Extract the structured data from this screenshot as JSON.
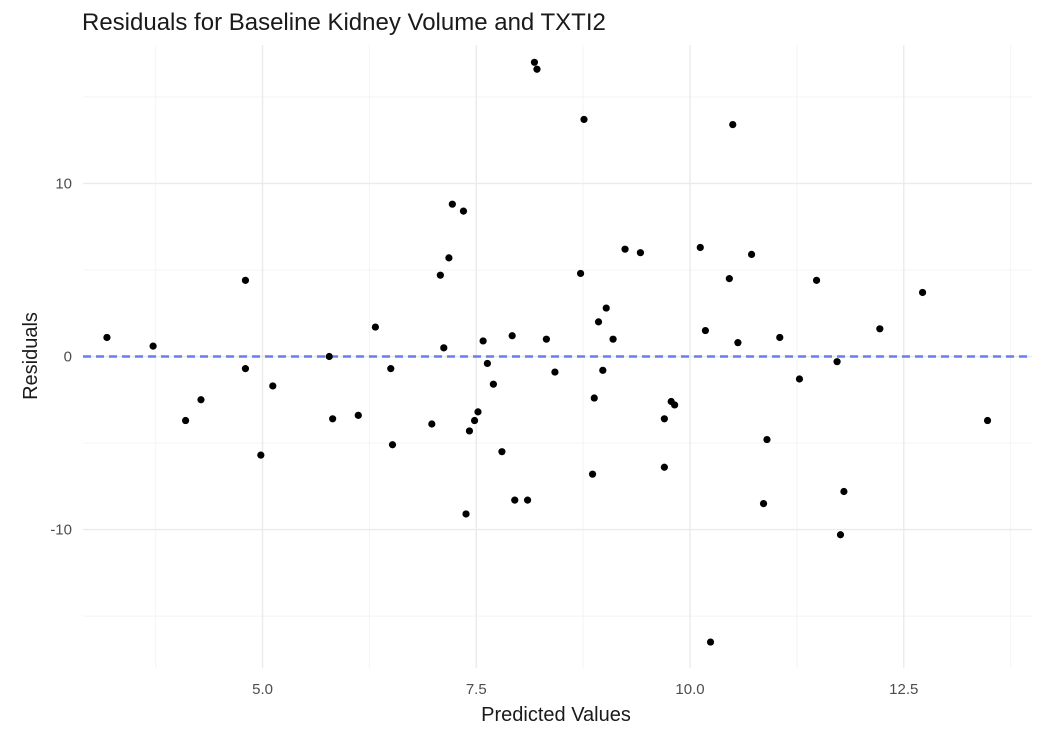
{
  "chart_data": {
    "type": "scatter",
    "title": "Residuals for Baseline Kidney Volume and TXTI2",
    "xlabel": "Predicted Values",
    "ylabel": "Residuals",
    "xlim": [
      2.9,
      14.0
    ],
    "ylim": [
      -18.0,
      18.0
    ],
    "x_ticks": [
      5.0,
      7.5,
      10.0,
      12.5
    ],
    "x_tick_labels": [
      "5.0",
      "7.5",
      "10.0",
      "12.5"
    ],
    "y_ticks": [
      -10,
      0,
      10
    ],
    "y_tick_labels": [
      "-10",
      "0",
      "10"
    ],
    "grid": true,
    "reference_line": {
      "y": 0,
      "style": "dashed",
      "color": "#6b7cf0"
    },
    "point_color": "#000000",
    "points": [
      {
        "x": 3.18,
        "y": 1.1
      },
      {
        "x": 3.72,
        "y": 0.6
      },
      {
        "x": 4.1,
        "y": -3.7
      },
      {
        "x": 4.28,
        "y": -2.5
      },
      {
        "x": 4.8,
        "y": 4.4
      },
      {
        "x": 4.8,
        "y": -0.7
      },
      {
        "x": 4.98,
        "y": -5.7
      },
      {
        "x": 5.12,
        "y": -1.7
      },
      {
        "x": 5.78,
        "y": 0.0
      },
      {
        "x": 5.82,
        "y": -3.6
      },
      {
        "x": 6.12,
        "y": -3.4
      },
      {
        "x": 6.32,
        "y": 1.7
      },
      {
        "x": 6.5,
        "y": -0.7
      },
      {
        "x": 6.52,
        "y": -5.1
      },
      {
        "x": 6.98,
        "y": -3.9
      },
      {
        "x": 7.08,
        "y": 4.7
      },
      {
        "x": 7.12,
        "y": 0.5
      },
      {
        "x": 7.18,
        "y": 5.7
      },
      {
        "x": 7.22,
        "y": 8.8
      },
      {
        "x": 7.35,
        "y": 8.4
      },
      {
        "x": 7.38,
        "y": -9.1
      },
      {
        "x": 7.42,
        "y": -4.3
      },
      {
        "x": 7.48,
        "y": -3.7
      },
      {
        "x": 7.52,
        "y": -3.2
      },
      {
        "x": 7.58,
        "y": 0.9
      },
      {
        "x": 7.63,
        "y": -0.4
      },
      {
        "x": 7.7,
        "y": -1.6
      },
      {
        "x": 7.8,
        "y": -5.5
      },
      {
        "x": 7.92,
        "y": 1.2
      },
      {
        "x": 7.95,
        "y": -8.3
      },
      {
        "x": 8.1,
        "y": -8.3
      },
      {
        "x": 8.18,
        "y": 17.0
      },
      {
        "x": 8.21,
        "y": 16.6
      },
      {
        "x": 8.32,
        "y": 1.0
      },
      {
        "x": 8.42,
        "y": -0.9
      },
      {
        "x": 8.72,
        "y": 4.8
      },
      {
        "x": 8.76,
        "y": 13.7
      },
      {
        "x": 8.86,
        "y": -6.8
      },
      {
        "x": 8.88,
        "y": -2.4
      },
      {
        "x": 8.93,
        "y": 2.0
      },
      {
        "x": 8.98,
        "y": -0.8
      },
      {
        "x": 9.02,
        "y": 2.8
      },
      {
        "x": 9.1,
        "y": 1.0
      },
      {
        "x": 9.24,
        "y": 6.2
      },
      {
        "x": 9.42,
        "y": 6.0
      },
      {
        "x": 9.7,
        "y": -3.6
      },
      {
        "x": 9.7,
        "y": -6.4
      },
      {
        "x": 9.78,
        "y": -2.6
      },
      {
        "x": 9.82,
        "y": -2.8
      },
      {
        "x": 10.12,
        "y": 6.3
      },
      {
        "x": 10.18,
        "y": 1.5
      },
      {
        "x": 10.24,
        "y": -16.5
      },
      {
        "x": 10.46,
        "y": 4.5
      },
      {
        "x": 10.5,
        "y": 13.4
      },
      {
        "x": 10.56,
        "y": 0.8
      },
      {
        "x": 10.72,
        "y": 5.9
      },
      {
        "x": 10.86,
        "y": -8.5
      },
      {
        "x": 10.9,
        "y": -4.8
      },
      {
        "x": 11.05,
        "y": 1.1
      },
      {
        "x": 11.28,
        "y": -1.3
      },
      {
        "x": 11.48,
        "y": 4.4
      },
      {
        "x": 11.72,
        "y": -0.3
      },
      {
        "x": 11.76,
        "y": -10.3
      },
      {
        "x": 11.8,
        "y": -7.8
      },
      {
        "x": 12.22,
        "y": 1.6
      },
      {
        "x": 12.72,
        "y": 3.7
      },
      {
        "x": 13.48,
        "y": -3.7
      }
    ]
  }
}
